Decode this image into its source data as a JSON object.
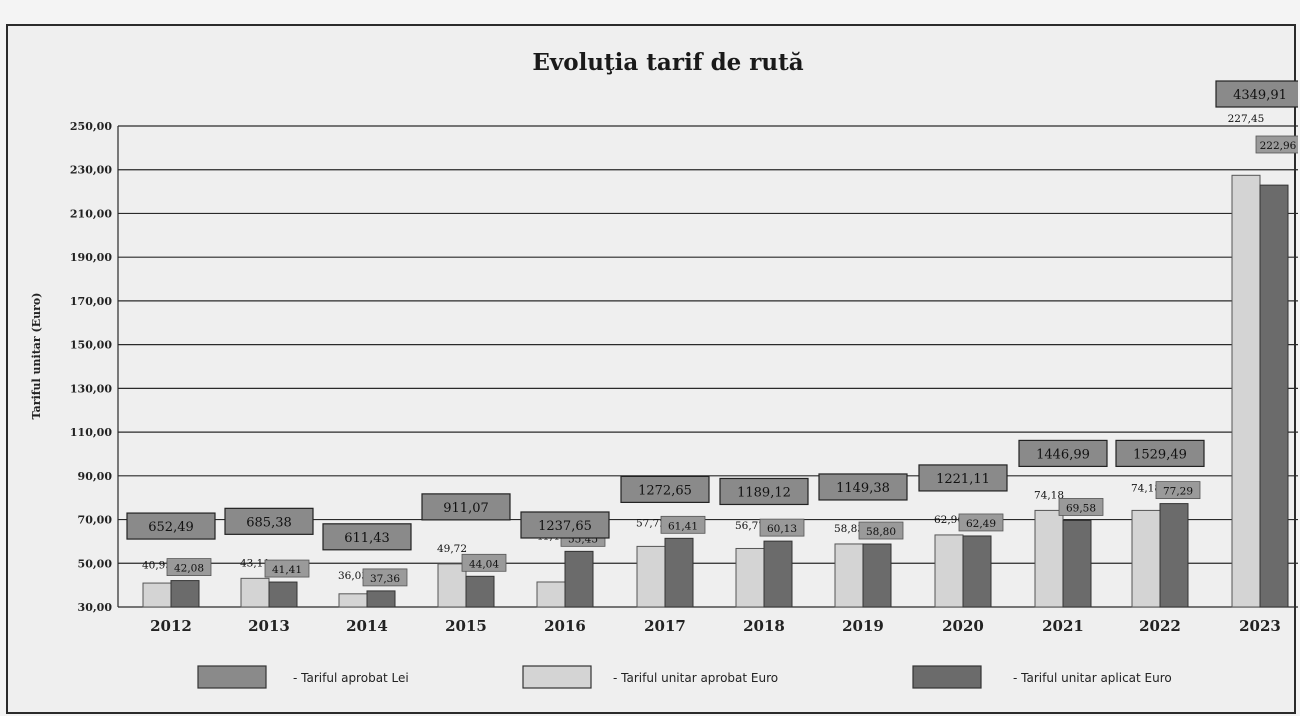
{
  "chart_data": {
    "type": "bar",
    "title": "Evoluţia tarif de rută",
    "ylabel": "Tariful unitar (Euro)",
    "xlabel": "",
    "ylim": [
      30,
      250
    ],
    "yticks": [
      "30,00",
      "50,00",
      "70,00",
      "90,00",
      "110,00",
      "130,00",
      "150,00",
      "170,00",
      "190,00",
      "210,00",
      "230,00",
      "250,00"
    ],
    "categories": [
      "2012",
      "2013",
      "2014",
      "2015",
      "2016",
      "2017",
      "2018",
      "2019",
      "2020",
      "2021",
      "2022",
      "2023"
    ],
    "series": [
      {
        "name": "- Tariful unitar aprobat Euro",
        "values": [
          40.95,
          43.11,
          36.03,
          49.72,
          41.44,
          57.72,
          56.77,
          58.83,
          62.96,
          74.18,
          74.18,
          227.45
        ],
        "labels": [
          "40,95",
          "43,11",
          "36,03",
          "49,72",
          "41,44",
          "57,72",
          "56,77",
          "58,83",
          "62,96",
          "74,18",
          "74,18",
          "227,45"
        ]
      },
      {
        "name": "- Tariful unitar aplicat Euro",
        "values": [
          42.08,
          41.41,
          37.36,
          44.04,
          55.45,
          61.41,
          60.13,
          58.8,
          62.49,
          69.58,
          77.29,
          222.96
        ],
        "labels": [
          "42,08",
          "41,41",
          "37,36",
          "44,04",
          "55,45",
          "61,41",
          "60,13",
          "58,80",
          "62,49",
          "69,58",
          "77,29",
          "222,96"
        ]
      },
      {
        "name": "- Tariful aprobat Lei",
        "values": [
          652.49,
          685.38,
          611.43,
          911.07,
          1237.65,
          1272.65,
          1189.12,
          1149.38,
          1221.11,
          1446.99,
          1529.49,
          4349.91
        ],
        "labels": [
          "652,49",
          "685,38",
          "611,43",
          "911,07",
          "1237,65",
          "1272,65",
          "1189,12",
          "1149,38",
          "1221,11",
          "1446,99",
          "1529,49",
          "4349,91"
        ]
      }
    ],
    "colors": {
      "aprobat_euro": "#d4d4d4",
      "aplicat_euro": "#6b6b6b",
      "lei_box": "#8a8a8a",
      "grid": "#2a2a2a"
    },
    "grid": true,
    "legend_position": "bottom"
  }
}
